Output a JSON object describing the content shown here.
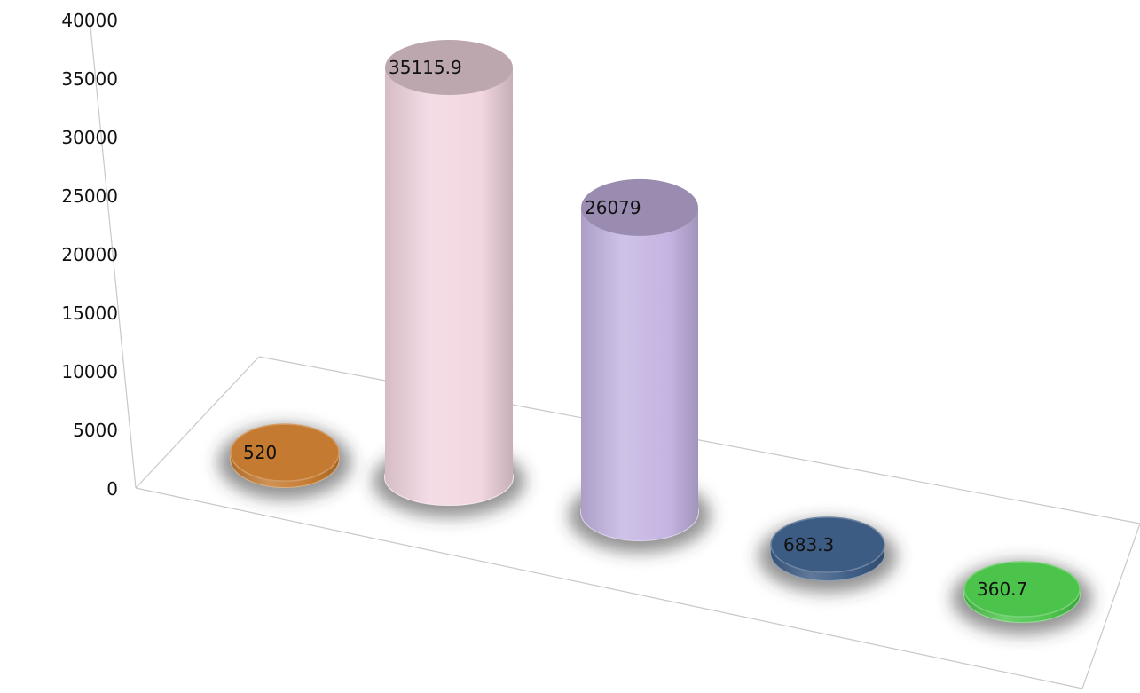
{
  "chart_data": {
    "type": "bar",
    "style": "3d-cylinder",
    "title": "",
    "xlabel": "",
    "ylabel": "",
    "ylim": [
      0,
      40000
    ],
    "yticks": [
      0,
      5000,
      10000,
      15000,
      20000,
      25000,
      30000,
      35000,
      40000
    ],
    "grid": false,
    "legend": "none",
    "values": [
      520,
      35115.9,
      26079,
      683.3,
      360.7
    ],
    "data_labels": [
      "520",
      "35115.9",
      "26079",
      "683.3",
      "360.7"
    ],
    "colors": [
      "#c47a30",
      "#f2d6e0",
      "#c4b4e2",
      "#3d5c84",
      "#4cc44c"
    ]
  }
}
